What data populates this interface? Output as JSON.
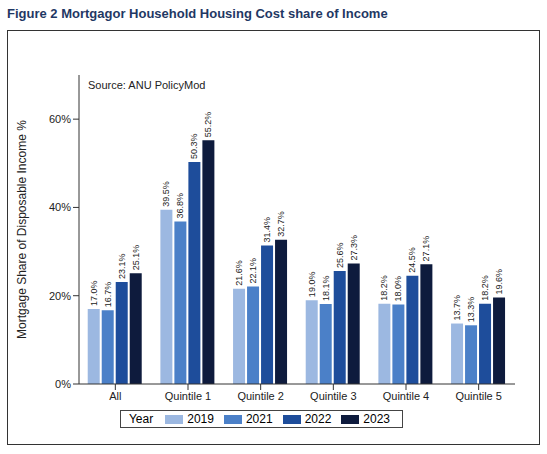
{
  "chart_data": {
    "type": "bar",
    "title": "Figure 2 Mortgagor Household Housing Cost share of Income",
    "annotation": "Source: ANU PolicyMod",
    "y_label": "Mortgage Share of Disposable Income %",
    "legend_title": "Year",
    "legend": "bottom",
    "grid": false,
    "data_labels": true,
    "categories": [
      "All",
      "Quintile 1",
      "Quintile 2",
      "Quintile 3",
      "Quintile 4",
      "Quintile 5"
    ],
    "ylim": [
      0,
      70
    ],
    "yticks": [
      {
        "value": 0,
        "label": "0%"
      },
      {
        "value": 20,
        "label": "20%"
      },
      {
        "value": 40,
        "label": "40%"
      },
      {
        "value": 60,
        "label": "60%"
      }
    ],
    "series": [
      {
        "name": "2019",
        "color": "#9cb8e1",
        "values": [
          17.0,
          39.5,
          21.6,
          19.0,
          18.2,
          13.7
        ],
        "value_labels": [
          "17.0%",
          "39.5%",
          "21.6%",
          "19.0%",
          "18.2%",
          "13.7%"
        ]
      },
      {
        "name": "2021",
        "color": "#4b80c8",
        "values": [
          16.7,
          36.8,
          22.1,
          18.1,
          18.0,
          13.3
        ],
        "value_labels": [
          "16.7%",
          "36.8%",
          "22.1%",
          "18.1%",
          "18.0%",
          "13.3%"
        ]
      },
      {
        "name": "2022",
        "color": "#1e4d9b",
        "values": [
          23.1,
          50.3,
          31.4,
          25.6,
          24.5,
          18.2
        ],
        "value_labels": [
          "23.1%",
          "50.3%",
          "31.4%",
          "25.6%",
          "24.5%",
          "18.2%"
        ]
      },
      {
        "name": "2023",
        "color": "#0e1b3d",
        "values": [
          25.1,
          55.2,
          32.7,
          27.3,
          27.1,
          19.6
        ],
        "value_labels": [
          "25.1%",
          "55.2%",
          "32.7%",
          "27.3%",
          "27.1%",
          "19.6%"
        ]
      }
    ]
  }
}
